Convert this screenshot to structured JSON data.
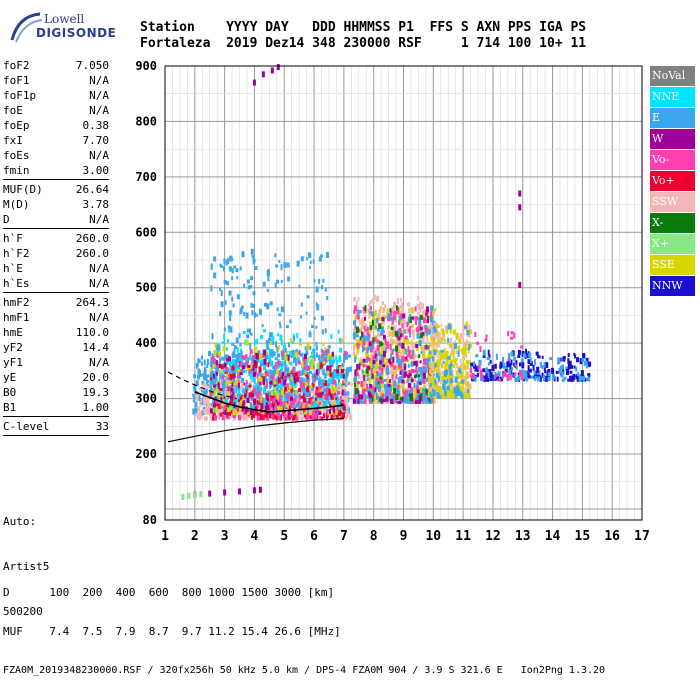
{
  "logo": {
    "line1": "Lowell",
    "line2": "DIGISONDE"
  },
  "header": {
    "row1": "Station    YYYY DAY   DDD HHMMSS P1  FFS S AXN PPS IGA PS",
    "row2": "Fortaleza  2019 Dez14 348 230000 RSF     1 714 100 10+ 11"
  },
  "params": {
    "group1": [
      {
        "label": "foF2",
        "value": "7.050"
      },
      {
        "label": "foF1",
        "value": "N/A"
      },
      {
        "label": "foF1p",
        "value": "N/A"
      },
      {
        "label": "foE",
        "value": "N/A"
      },
      {
        "label": "foEp",
        "value": "0.38"
      },
      {
        "label": "fxI",
        "value": "7.70"
      },
      {
        "label": "foEs",
        "value": "N/A"
      },
      {
        "label": "fmin",
        "value": "3.00"
      }
    ],
    "group2": [
      {
        "label": "MUF(D)",
        "value": "26.64"
      },
      {
        "label": "M(D)",
        "value": "3.78"
      },
      {
        "label": "D",
        "value": "N/A"
      }
    ],
    "group3": [
      {
        "label": "h`F",
        "value": "260.0"
      },
      {
        "label": "h`F2",
        "value": "260.0"
      },
      {
        "label": "h`E",
        "value": "N/A"
      },
      {
        "label": "h`Es",
        "value": "N/A"
      }
    ],
    "group4": [
      {
        "label": "hmF2",
        "value": "264.3"
      },
      {
        "label": "hmF1",
        "value": "N/A"
      },
      {
        "label": "hmE",
        "value": "110.0"
      },
      {
        "label": "yF2",
        "value": "14.4"
      },
      {
        "label": "yF1",
        "value": "N/A"
      },
      {
        "label": "yE",
        "value": "20.0"
      },
      {
        "label": "B0",
        "value": "19.3"
      },
      {
        "label": "B1",
        "value": "1.00"
      }
    ],
    "group5": [
      {
        "label": "C-level",
        "value": "33"
      }
    ]
  },
  "auto": {
    "line1": "Auto:",
    "line2": "Artist5",
    "line3": "500200"
  },
  "legend": [
    {
      "label": "NoVal",
      "color": "#808080"
    },
    {
      "label": "NNE",
      "color": "#00e5ff"
    },
    {
      "label": "E",
      "color": "#3aa6ee"
    },
    {
      "label": "W",
      "color": "#a0009a"
    },
    {
      "label": "Vo-",
      "color": "#ff3fb0"
    },
    {
      "label": "Vo+",
      "color": "#f00030"
    },
    {
      "label": "SSW",
      "color": "#f4b6b6"
    },
    {
      "label": "X-",
      "color": "#0a7a0a"
    },
    {
      "label": "X+",
      "color": "#88e888"
    },
    {
      "label": "SSE",
      "color": "#d6d600"
    },
    {
      "label": "NNW",
      "color": "#1a10d0"
    }
  ],
  "footer": {
    "row1": "D      100  200  400  600  800 1000 1500 3000 [km]",
    "row2": "MUF    7.4  7.5  7.9  8.7  9.7 11.2 15.4 26.6 [MHz]",
    "row3": "FZA0M_2019348230000.RSF / 320fx256h 50 kHz 5.0 km / DPS-4 FZA0M 904 / 3.9 S 321.6 E   Ion2Png 1.3.20"
  },
  "chart_data": {
    "type": "scatter",
    "title": "",
    "xlabel": "",
    "ylabel": "",
    "xlim": [
      1,
      17
    ],
    "ylim": [
      80,
      900
    ],
    "xticks": [
      1,
      2,
      3,
      4,
      5,
      6,
      7,
      8,
      9,
      10,
      11,
      12,
      13,
      14,
      15,
      16,
      17
    ],
    "yticks": [
      80,
      200,
      300,
      400,
      500,
      600,
      700,
      800,
      900
    ],
    "grid": true,
    "legend_placement": "right",
    "series": [
      {
        "color": "#000000",
        "points": [
          [
            2.0,
            312
          ],
          [
            2.5,
            302
          ],
          [
            3.0,
            292
          ],
          [
            3.5,
            285
          ],
          [
            4.0,
            280
          ],
          [
            4.5,
            276
          ],
          [
            5.0,
            278
          ],
          [
            5.5,
            280
          ],
          [
            6.0,
            282
          ],
          [
            6.5,
            285
          ],
          [
            7.0,
            288
          ]
        ]
      },
      {
        "color": "#000000",
        "points": [
          [
            1.1,
            222
          ],
          [
            2.0,
            232
          ],
          [
            3.0,
            242
          ],
          [
            4.0,
            250
          ],
          [
            5.0,
            256
          ],
          [
            6.0,
            261
          ],
          [
            7.0,
            264
          ]
        ]
      },
      {
        "color": "#000000",
        "points": [
          [
            1.1,
            348
          ],
          [
            1.6,
            334
          ],
          [
            2.2,
            320
          ],
          [
            2.8,
            308
          ],
          [
            3.4,
            300
          ]
        ]
      },
      {
        "color": "#a0009a",
        "points": [
          [
            2.0,
            126
          ],
          [
            2.5,
            128
          ],
          [
            3.0,
            130
          ],
          [
            3.5,
            132
          ],
          [
            4.0,
            134
          ],
          [
            4.2,
            135
          ]
        ]
      },
      {
        "color": "#88e888",
        "points": [
          [
            1.6,
            122
          ],
          [
            1.8,
            124
          ],
          [
            2.0,
            125
          ],
          [
            2.2,
            127
          ]
        ]
      },
      {
        "color": "#a0009a",
        "points": [
          [
            4.0,
            870
          ],
          [
            4.3,
            885
          ],
          [
            4.6,
            892
          ],
          [
            4.8,
            898
          ]
        ]
      },
      {
        "color": "#1a10d0",
        "points": [
          [
            12.0,
            355
          ],
          [
            12.5,
            362
          ],
          [
            13.0,
            360
          ],
          [
            13.5,
            352
          ],
          [
            14.0,
            350
          ],
          [
            14.5,
            348
          ],
          [
            15.0,
            346
          ]
        ]
      },
      {
        "color": "#a0009a",
        "points": [
          [
            12.9,
            505
          ],
          [
            12.9,
            645
          ],
          [
            12.9,
            670
          ]
        ]
      }
    ],
    "clouds": [
      {
        "x": [
          1.9,
          7.2
        ],
        "y": [
          270,
          380
        ],
        "color": "#3aa6ee",
        "density": 700
      },
      {
        "x": [
          2.0,
          7.2
        ],
        "y": [
          260,
          330
        ],
        "color": "#f4b6b6",
        "density": 350
      },
      {
        "x": [
          2.5,
          7.0
        ],
        "y": [
          280,
          420
        ],
        "color": "#00e5ff",
        "density": 250
      },
      {
        "x": [
          2.5,
          6.5
        ],
        "y": [
          300,
          560
        ],
        "color": "#3aa6ee",
        "density": 300
      },
      {
        "x": [
          2.5,
          7.0
        ],
        "y": [
          260,
          360
        ],
        "color": "#f00030",
        "density": 200
      },
      {
        "x": [
          2.5,
          7.0
        ],
        "y": [
          260,
          380
        ],
        "color": "#ff3fb0",
        "density": 160
      },
      {
        "x": [
          2.5,
          7.0
        ],
        "y": [
          270,
          400
        ],
        "color": "#d6d600",
        "density": 120
      },
      {
        "x": [
          2.5,
          7.0
        ],
        "y": [
          270,
          380
        ],
        "color": "#a0009a",
        "density": 80
      },
      {
        "x": [
          7.3,
          10.0
        ],
        "y": [
          290,
          480
        ],
        "color": "#f4b6b6",
        "density": 450
      },
      {
        "x": [
          7.3,
          10.0
        ],
        "y": [
          290,
          460
        ],
        "color": "#d6d600",
        "density": 260
      },
      {
        "x": [
          7.3,
          10.0
        ],
        "y": [
          290,
          460
        ],
        "color": "#ff3fb0",
        "density": 220
      },
      {
        "x": [
          7.3,
          10.0
        ],
        "y": [
          290,
          460
        ],
        "color": "#3aa6ee",
        "density": 180
      },
      {
        "x": [
          7.3,
          10.0
        ],
        "y": [
          290,
          460
        ],
        "color": "#a0009a",
        "density": 80
      },
      {
        "x": [
          7.3,
          10.0
        ],
        "y": [
          290,
          460
        ],
        "color": "#0a7a0a",
        "density": 40
      },
      {
        "x": [
          9.8,
          11.2
        ],
        "y": [
          300,
          430
        ],
        "color": "#f4b6b6",
        "density": 220
      },
      {
        "x": [
          9.8,
          11.2
        ],
        "y": [
          300,
          430
        ],
        "color": "#d6d600",
        "density": 200
      },
      {
        "x": [
          9.8,
          11.2
        ],
        "y": [
          300,
          430
        ],
        "color": "#3aa6ee",
        "density": 60
      },
      {
        "x": [
          11.2,
          15.2
        ],
        "y": [
          330,
          380
        ],
        "color": "#1a10d0",
        "density": 140
      },
      {
        "x": [
          11.2,
          15.2
        ],
        "y": [
          330,
          380
        ],
        "color": "#3aa6ee",
        "density": 90
      },
      {
        "x": [
          11.2,
          13.0
        ],
        "y": [
          330,
          420
        ],
        "color": "#ff3fb0",
        "density": 30
      }
    ]
  }
}
